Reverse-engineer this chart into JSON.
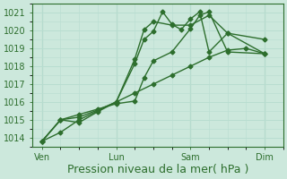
{
  "xlabel": "Pression niveau de la mer( hPa )",
  "bg_color": "#cce8dc",
  "grid_color": "#b8ddd0",
  "line_color": "#2d6e2d",
  "ylim": [
    1013.5,
    1021.5
  ],
  "yticks": [
    1014,
    1015,
    1016,
    1017,
    1018,
    1019,
    1020,
    1021
  ],
  "xtick_labels": [
    "Ven",
    "Lun",
    "Sam",
    "Dim"
  ],
  "xtick_positions": [
    0,
    4,
    8,
    12
  ],
  "vline_positions": [
    0,
    4,
    8,
    12
  ],
  "series": [
    {
      "x": [
        0,
        1,
        2,
        3,
        4,
        5,
        5.5,
        6,
        7,
        8,
        8.5,
        9,
        10,
        12
      ],
      "y": [
        1013.8,
        1015.0,
        1015.3,
        1015.6,
        1015.9,
        1016.05,
        1017.35,
        1018.3,
        1018.8,
        1020.1,
        1020.85,
        1021.05,
        1018.8,
        1018.7
      ]
    },
    {
      "x": [
        0,
        1,
        2,
        3,
        4,
        5,
        5.5,
        6,
        7,
        8,
        9,
        10,
        12
      ],
      "y": [
        1013.8,
        1015.0,
        1014.85,
        1015.45,
        1016.0,
        1018.4,
        1020.05,
        1020.5,
        1020.3,
        1020.3,
        1020.85,
        1019.85,
        1019.5
      ]
    },
    {
      "x": [
        0,
        1,
        2,
        3,
        4,
        5,
        5.5,
        6,
        6.5,
        7,
        7.5,
        8,
        8.5,
        9,
        10,
        12
      ],
      "y": [
        1013.8,
        1015.0,
        1015.15,
        1015.55,
        1016.0,
        1018.15,
        1019.5,
        1019.95,
        1021.05,
        1020.35,
        1020.05,
        1020.65,
        1021.05,
        1018.8,
        1019.85,
        1018.7
      ]
    },
    {
      "x": [
        0,
        1,
        2,
        3,
        4,
        5,
        6,
        7,
        8,
        9,
        10,
        11,
        12
      ],
      "y": [
        1013.8,
        1014.3,
        1015.0,
        1015.5,
        1016.0,
        1016.5,
        1017.0,
        1017.5,
        1018.0,
        1018.5,
        1018.9,
        1019.0,
        1018.7
      ]
    }
  ],
  "marker": "D",
  "marker_size": 2.5,
  "line_width": 1.0,
  "tick_fontsize": 7,
  "xlabel_fontsize": 9
}
